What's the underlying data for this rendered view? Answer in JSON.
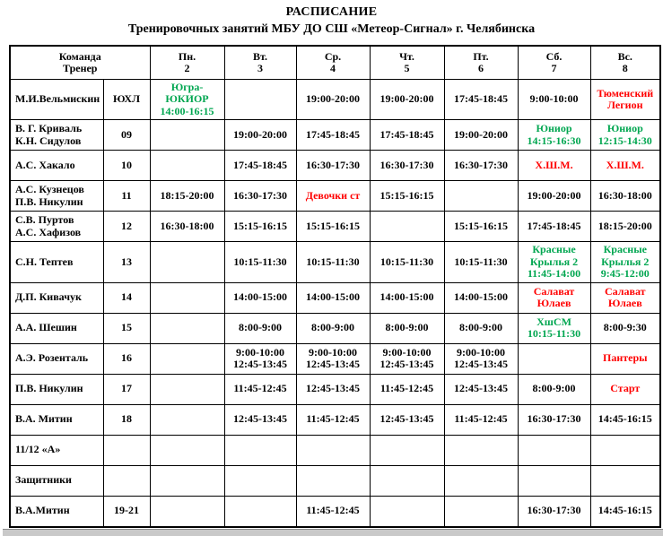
{
  "page": {
    "title": "РАСПИСАНИЕ",
    "subtitle": "Тренировочных занятий МБУ ДО СШ «Метеор-Сигнал» г. Челябинска"
  },
  "colors": {
    "accent_green": "#00A650",
    "accent_red": "#FF0000",
    "grid_black": "#000000",
    "footer_bar_grey": "#C9C9C9"
  },
  "table": {
    "corner_header": "Команда\nТренер",
    "day_headers": [
      {
        "label": "Пн.",
        "num": "2"
      },
      {
        "label": "Вт.",
        "num": "3"
      },
      {
        "label": "Ср.",
        "num": "4"
      },
      {
        "label": "Чт.",
        "num": "5"
      },
      {
        "label": "Пт.",
        "num": "6"
      },
      {
        "label": "Сб.",
        "num": "7"
      },
      {
        "label": "Вс.",
        "num": "8"
      }
    ],
    "rows": [
      {
        "coach": "М.И.Вельмискин",
        "team": "ЮХЛ",
        "days": [
          {
            "text": "Югра-\nЮКИОР\n14:00-16:15",
            "color": "green"
          },
          null,
          {
            "text": "19:00-20:00"
          },
          {
            "text": "19:00-20:00"
          },
          {
            "text": "17:45-18:45"
          },
          {
            "text": "9:00-10:00"
          },
          {
            "text": "Тюменский\nЛегион",
            "color": "red"
          }
        ]
      },
      {
        "coach": "В. Г. Криваль\nК.Н. Сидулов",
        "team": "09",
        "days": [
          null,
          {
            "text": "19:00-20:00"
          },
          {
            "text": "17:45-18:45"
          },
          {
            "text": "17:45-18:45"
          },
          {
            "text": "19:00-20:00"
          },
          {
            "text": "Юниор\n14:15-16:30",
            "color": "green"
          },
          {
            "text": "Юниор\n12:15-14:30",
            "color": "green"
          }
        ]
      },
      {
        "coach": "А.С. Хакало",
        "team": "10",
        "days": [
          null,
          {
            "text": "17:45-18:45"
          },
          {
            "text": "16:30-17:30"
          },
          {
            "text": "16:30-17:30"
          },
          {
            "text": "16:30-17:30"
          },
          {
            "text": "Х.Ш.М.",
            "color": "red"
          },
          {
            "text": "Х.Ш.М.",
            "color": "red"
          }
        ]
      },
      {
        "coach": "А.С. Кузнецов\nП.В. Никулин",
        "team": "11",
        "days": [
          {
            "text": "18:15-20:00"
          },
          {
            "text": "16:30-17:30"
          },
          {
            "text": "Девочки ст",
            "color": "red"
          },
          {
            "text": "15:15-16:15"
          },
          null,
          {
            "text": "19:00-20:00"
          },
          {
            "text": "16:30-18:00"
          }
        ]
      },
      {
        "coach": "С.В. Пуртов\nА.С. Хафизов",
        "team": "12",
        "days": [
          {
            "text": "16:30-18:00"
          },
          {
            "text": "15:15-16:15"
          },
          {
            "text": "15:15-16:15"
          },
          null,
          {
            "text": "15:15-16:15"
          },
          {
            "text": "17:45-18:45"
          },
          {
            "text": "18:15-20:00"
          }
        ]
      },
      {
        "coach": "С.Н. Тептев",
        "team": "13",
        "days": [
          null,
          {
            "text": "10:15-11:30"
          },
          {
            "text": "10:15-11:30"
          },
          {
            "text": "10:15-11:30"
          },
          {
            "text": "10:15-11:30"
          },
          {
            "text": "Красные\nКрылья 2\n11:45-14:00",
            "color": "green"
          },
          {
            "text": "Красные\nКрылья 2\n9:45-12:00",
            "color": "green"
          }
        ]
      },
      {
        "coach": "Д.П. Кивачук",
        "team": "14",
        "days": [
          null,
          {
            "text": "14:00-15:00"
          },
          {
            "text": "14:00-15:00"
          },
          {
            "text": "14:00-15:00"
          },
          {
            "text": "14:00-15:00"
          },
          {
            "text": "Салават\nЮлаев",
            "color": "red"
          },
          {
            "text": "Салават\nЮлаев",
            "color": "red"
          }
        ]
      },
      {
        "coach": "А.А. Шешин",
        "team": "15",
        "days": [
          null,
          {
            "text": "8:00-9:00"
          },
          {
            "text": "8:00-9:00"
          },
          {
            "text": "8:00-9:00"
          },
          {
            "text": "8:00-9:00"
          },
          {
            "text": "ХшСМ\n10:15-11:30",
            "color": "green"
          },
          {
            "text": "8:00-9:30"
          }
        ]
      },
      {
        "coach": "А.Э. Розенталь",
        "team": "16",
        "days": [
          null,
          {
            "text": "9:00-10:00\n12:45-13:45"
          },
          {
            "text": "9:00-10:00\n12:45-13:45"
          },
          {
            "text": "9:00-10:00\n12:45-13:45"
          },
          {
            "text": "9:00-10:00\n12:45-13:45"
          },
          null,
          {
            "text": "Пантеры",
            "color": "red"
          }
        ]
      },
      {
        "coach": "П.В. Никулин",
        "team": "17",
        "days": [
          null,
          {
            "text": "11:45-12:45"
          },
          {
            "text": "12:45-13:45"
          },
          {
            "text": "11:45-12:45"
          },
          {
            "text": "12:45-13:45"
          },
          {
            "text": "8:00-9:00"
          },
          {
            "text": "Старт",
            "color": "red"
          }
        ]
      },
      {
        "coach": "В.А. Митин",
        "team": "18",
        "days": [
          null,
          {
            "text": "12:45-13:45"
          },
          {
            "text": "11:45-12:45"
          },
          {
            "text": "12:45-13:45"
          },
          {
            "text": "11:45-12:45"
          },
          {
            "text": "16:30-17:30"
          },
          {
            "text": "14:45-16:15"
          }
        ]
      },
      {
        "coach": "11/12 «А»",
        "team": "",
        "days": [
          null,
          null,
          null,
          null,
          null,
          null,
          null
        ]
      },
      {
        "coach": "Защитники",
        "team": "",
        "days": [
          null,
          null,
          null,
          null,
          null,
          null,
          null
        ]
      },
      {
        "coach": "В.А.Митин",
        "team": "19-21",
        "days": [
          null,
          null,
          {
            "text": "11:45-12:45"
          },
          null,
          null,
          {
            "text": "16:30-17:30"
          },
          {
            "text": "14:45-16:15"
          }
        ]
      }
    ]
  }
}
